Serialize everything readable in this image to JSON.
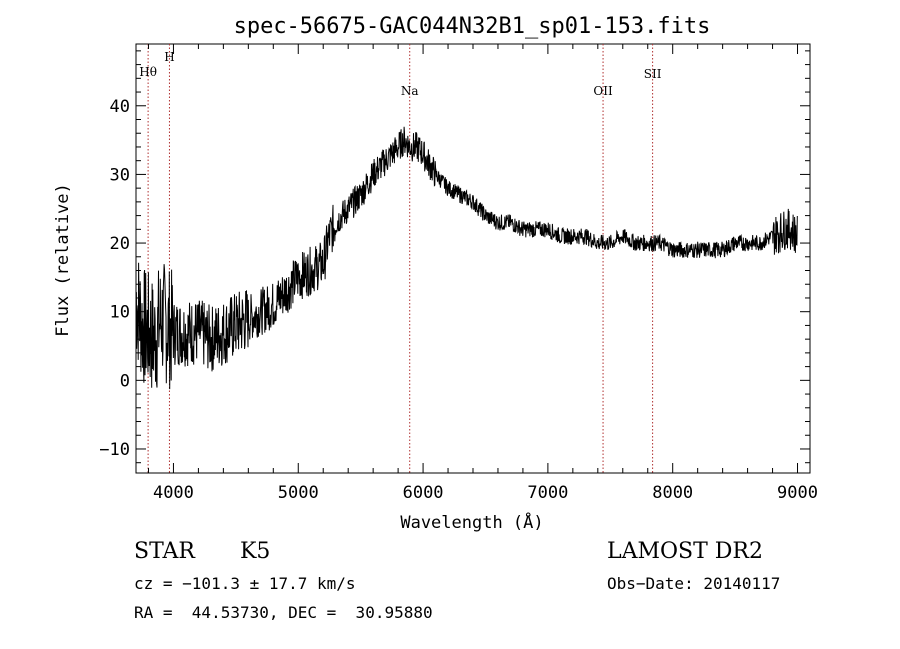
{
  "chart_data": {
    "type": "line",
    "title": "spec-56675-GAC044N32B1_sp01-153.fits",
    "xlabel": "Wavelength (Å)",
    "ylabel": "Flux (relative)",
    "xlim": [
      3700,
      9100
    ],
    "ylim": [
      -13.5,
      49
    ],
    "x_ticks": [
      4000,
      5000,
      6000,
      7000,
      8000,
      9000
    ],
    "y_ticks": [
      -10,
      0,
      10,
      20,
      30,
      40
    ],
    "series_color": "#000000",
    "line_marker_color": "#b03030",
    "lines": [
      {
        "label": "Hθ",
        "x": 3797
      },
      {
        "label": "H",
        "x": 3968
      },
      {
        "label": "Na",
        "x": 5893
      },
      {
        "label": "OII",
        "x": 7442
      },
      {
        "label": "SII",
        "x": 7839
      }
    ],
    "series": [
      {
        "x": [
          3700,
          3750,
          3800,
          3850,
          3900,
          3950,
          4000,
          4100,
          4200,
          4300,
          4400,
          4500,
          4600,
          4700,
          4800,
          4900,
          5000,
          5100,
          5200,
          5250,
          5300,
          5400,
          5500,
          5600,
          5700,
          5800,
          5850,
          5900,
          5950,
          6000,
          6100,
          6200,
          6300,
          6400,
          6500,
          6600,
          6700,
          6800,
          6900,
          7000,
          7100,
          7200,
          7300,
          7400,
          7500,
          7600,
          7700,
          7800,
          7900,
          8000,
          8100,
          8200,
          8300,
          8400,
          8500,
          8600,
          8700,
          8800,
          8900,
          8950,
          9000
        ],
        "y": [
          12,
          8,
          7,
          6,
          9,
          8,
          7,
          7,
          7,
          6,
          7,
          8,
          9,
          10,
          11,
          13,
          15,
          16,
          17,
          21,
          23,
          25,
          27,
          30,
          32,
          34,
          35,
          34,
          34,
          33,
          30,
          28,
          27,
          26,
          24,
          23,
          23,
          22,
          22,
          22,
          21,
          21,
          21,
          20,
          20,
          21,
          20,
          20,
          20,
          19,
          19,
          19,
          19,
          19,
          20,
          20,
          20,
          21,
          22,
          22,
          21
        ]
      }
    ]
  },
  "info": {
    "object_class": "STAR",
    "subclass": "K5",
    "survey": "LAMOST DR2",
    "redshift": "cz = −101.3 ± 17.7 km/s",
    "obs_date": "Obs−Date: 20140117",
    "coords": "RA =  44.53730, DEC =  30.95880"
  }
}
